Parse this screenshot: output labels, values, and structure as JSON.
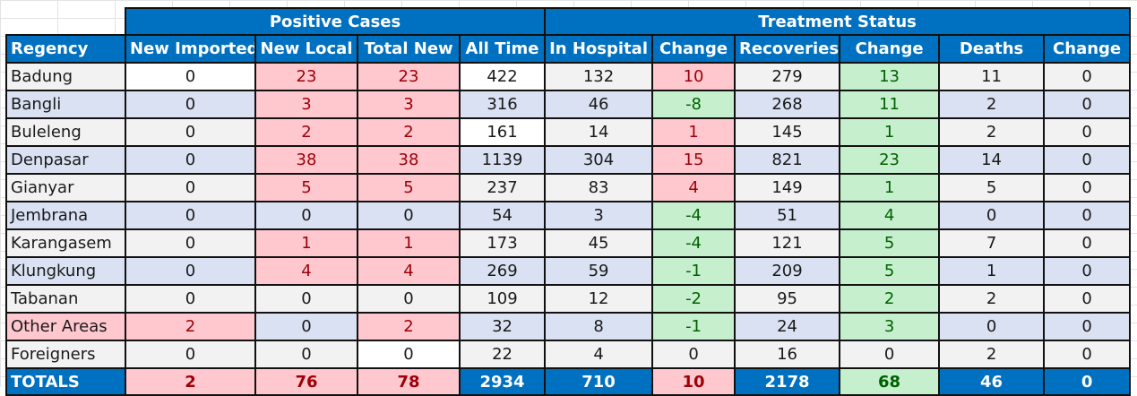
{
  "group_headers": {
    "positive_cases": "Positive Cases",
    "treatment_status": "Treatment Status"
  },
  "columns": [
    "Regency",
    "New Imported",
    "New Local",
    "Total New",
    "All Time",
    "In Hospital",
    "Change",
    "Recoveries",
    "Change",
    "Deaths",
    "Change"
  ],
  "rows": [
    [
      "Badung",
      "0",
      "23",
      "23",
      "422",
      "132",
      "10",
      "279",
      "13",
      "11",
      "0"
    ],
    [
      "Bangli",
      "0",
      "3",
      "3",
      "316",
      "46",
      "-8",
      "268",
      "11",
      "2",
      "0"
    ],
    [
      "Buleleng",
      "0",
      "2",
      "2",
      "161",
      "14",
      "1",
      "145",
      "1",
      "2",
      "0"
    ],
    [
      "Denpasar",
      "0",
      "38",
      "38",
      "1139",
      "304",
      "15",
      "821",
      "23",
      "14",
      "0"
    ],
    [
      "Gianyar",
      "0",
      "5",
      "5",
      "237",
      "83",
      "4",
      "149",
      "1",
      "5",
      "0"
    ],
    [
      "Jembrana",
      "0",
      "0",
      "0",
      "54",
      "3",
      "-4",
      "51",
      "4",
      "0",
      "0"
    ],
    [
      "Karangasem",
      "0",
      "1",
      "1",
      "173",
      "45",
      "-4",
      "121",
      "5",
      "7",
      "0"
    ],
    [
      "Klungkung",
      "0",
      "4",
      "4",
      "269",
      "59",
      "-1",
      "209",
      "5",
      "1",
      "0"
    ],
    [
      "Tabanan",
      "0",
      "0",
      "0",
      "109",
      "12",
      "-2",
      "95",
      "2",
      "2",
      "0"
    ],
    [
      "Other Areas",
      "2",
      "0",
      "2",
      "32",
      "8",
      "-1",
      "24",
      "3",
      "0",
      "0"
    ],
    [
      "Foreigners",
      "0",
      "0",
      "0",
      "22",
      "4",
      "0",
      "16",
      "0",
      "2",
      "0"
    ]
  ],
  "totals": [
    "TOTALS",
    "2",
    "76",
    "78",
    "2934",
    "710",
    "10",
    "2178",
    "68",
    "46",
    "0"
  ],
  "colors": {
    "header_blue": "#0070c0",
    "increase_fill": "#ffc7ce",
    "increase_text": "#9c0006",
    "decrease_fill": "#c6efce",
    "decrease_text": "#006100",
    "band_light": "#f2f2f2",
    "band_blue": "#d9e1f2"
  }
}
